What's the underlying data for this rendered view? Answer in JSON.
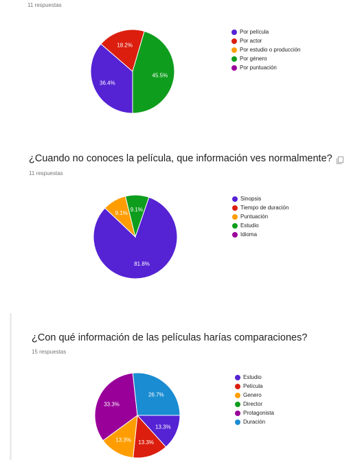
{
  "colors": {
    "text": "#212121",
    "muted": "#757575",
    "label": "#ffffff"
  },
  "questions": [
    {
      "title": "",
      "response_count": "11 respuestas",
      "show_copy_icon": false
    },
    {
      "title": "¿Cuando no conoces la película, que información ves normalmente?",
      "response_count": "11 respuestas",
      "show_copy_icon": true
    },
    {
      "title": "¿Con qué información de las películas harías comparaciones?",
      "response_count": "15 respuestas",
      "show_copy_icon": false
    }
  ],
  "chart_data": [
    {
      "type": "pie",
      "start_angle_deg": 90,
      "categories": [
        "Por película",
        "Por actor",
        "Por estudio o producción",
        "Por género",
        "Por puntuación"
      ],
      "values": [
        36.4,
        18.2,
        0,
        45.5,
        0
      ],
      "slice_labels": [
        "36.4%",
        "18.2%",
        "",
        "45.5%",
        ""
      ],
      "colors": [
        "#5522D4",
        "#DB1E0E",
        "#FF9D00",
        "#0E9D1D",
        "#990099"
      ],
      "legend_position": "right"
    },
    {
      "type": "pie",
      "start_angle_deg": -71,
      "categories": [
        "Sinopsis",
        "Tiempo de duración",
        "Puntuación",
        "Estudio",
        "Idioma"
      ],
      "values": [
        81.8,
        0,
        9.1,
        9.1,
        0
      ],
      "slice_labels": [
        "81.8%",
        "",
        "9.1%",
        "9.1%",
        ""
      ],
      "colors": [
        "#5522D4",
        "#DB1E0E",
        "#FF9D00",
        "#0E9D1D",
        "#990099"
      ],
      "legend_position": "right"
    },
    {
      "type": "pie",
      "start_angle_deg": 0,
      "categories": [
        "Estudio",
        "Película",
        "Genero",
        "Director",
        "Protagonista",
        "Duración"
      ],
      "values": [
        13.3,
        13.3,
        13.3,
        0,
        33.3,
        26.7
      ],
      "slice_labels": [
        "13.3%",
        "13.3%",
        "13.3%",
        "",
        "33.3%",
        "26.7%"
      ],
      "colors": [
        "#5522D4",
        "#DB1E0E",
        "#FF9D00",
        "#0E9D1D",
        "#990099",
        "#1A8CD1"
      ],
      "legend_position": "right"
    }
  ]
}
